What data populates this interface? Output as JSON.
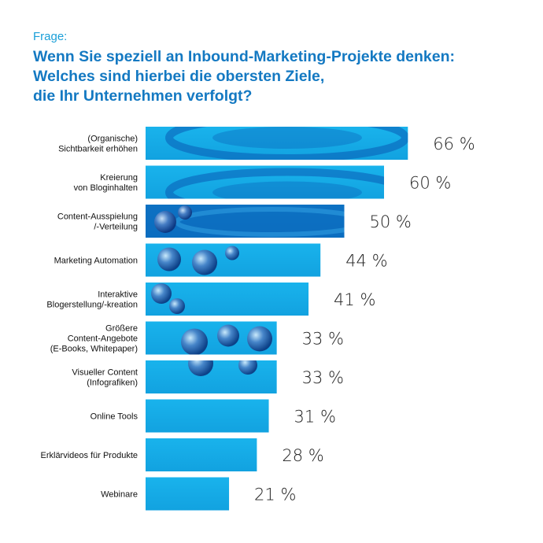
{
  "header": {
    "kicker": "Frage:",
    "title_lines": [
      "Wenn Sie speziell an Inbound-Marketing-Projekte denken:",
      "Welches sind hierbei die obersten Ziele,",
      "die Ihr Unternehmen verfolgt?"
    ]
  },
  "colors": {
    "bar_light": "#19b3ec",
    "bar_dark": "#0a5bb4",
    "title": "#1479c2",
    "kicker": "#1a9fd8"
  },
  "chart_data": {
    "type": "bar",
    "orientation": "horizontal",
    "title": "Wenn Sie speziell an Inbound-Marketing-Projekte denken: Welches sind hierbei die obersten Ziele, die Ihr Unternehmen verfolgt?",
    "xlabel": "",
    "ylabel": "",
    "xlim": [
      0,
      100
    ],
    "categories": [
      [
        "(Organische)",
        "Sichtbarkeit erhöhen"
      ],
      [
        "Kreierung",
        "von Bloginhalten"
      ],
      [
        "Content-Ausspielung",
        "/-Verteilung"
      ],
      [
        "Marketing Automation"
      ],
      [
        "Interaktive",
        "Blogerstellung/-kreation"
      ],
      [
        "Größere",
        "Content-Angebote",
        "(E-Books, Whitepaper)"
      ],
      [
        "Visueller Content",
        "(Infografiken)"
      ],
      [
        "Online Tools"
      ],
      [
        "Erklärvideos für Produkte"
      ],
      [
        "Webinare"
      ]
    ],
    "values": [
      66,
      60,
      50,
      44,
      41,
      33,
      33,
      31,
      28,
      21
    ],
    "value_labels": [
      "66 %",
      "60 %",
      "50 %",
      "44 %",
      "41 %",
      "33 %",
      "33 %",
      "31 %",
      "28 %",
      "21 %"
    ]
  }
}
